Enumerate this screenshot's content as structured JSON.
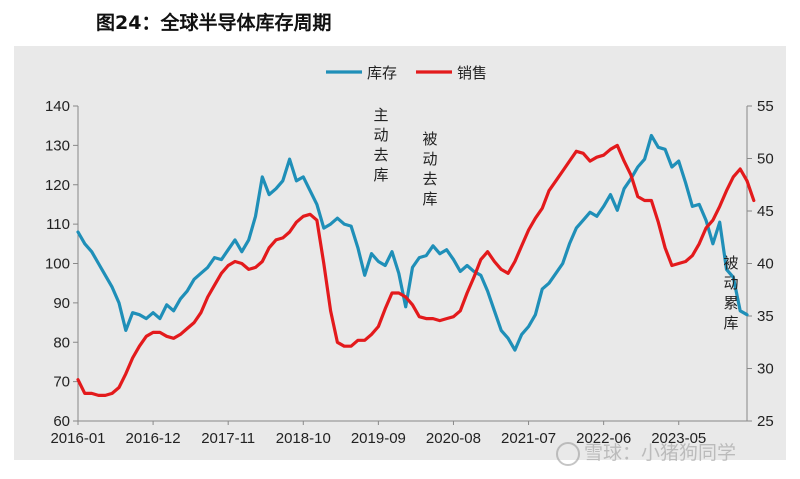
{
  "figure_title": "图24：全球半导体库存周期",
  "watermark": "雪球：小猪狗同学",
  "chart_data": {
    "type": "line",
    "title": "图24：全球半导体库存周期",
    "xlabel": "",
    "ylabel": "",
    "x_tick_labels": [
      "2016-01",
      "2016-12",
      "2017-11",
      "2018-10",
      "2019-09",
      "2020-08",
      "2021-07",
      "2022-06",
      "2023-05"
    ],
    "ylim_left": [
      60,
      140
    ],
    "yticks_left": [
      60,
      70,
      80,
      90,
      100,
      110,
      120,
      130,
      140
    ],
    "ylim_right": [
      25,
      55
    ],
    "yticks_right": [
      25,
      30,
      35,
      40,
      45,
      50,
      55
    ],
    "grid": false,
    "legend_position": "top-center",
    "colors": {
      "库存": "#1f8fb8",
      "销售": "#e31a1c"
    },
    "series": [
      {
        "name": "库存",
        "axis": "left",
        "values": [
          108,
          105,
          103,
          100,
          97,
          94,
          90,
          83,
          87.5,
          87,
          86,
          87.5,
          86,
          89.5,
          88,
          91,
          93,
          96,
          97.5,
          99,
          101.5,
          101,
          103.5,
          106,
          103,
          106,
          112,
          122,
          117.5,
          119,
          121,
          126.5,
          121,
          122,
          118.5,
          115,
          109,
          110,
          111.5,
          110,
          109.5,
          104,
          97,
          102.5,
          100.5,
          99.5,
          103,
          97.5,
          89,
          99,
          101.5,
          102,
          104.5,
          102.5,
          103.5,
          101,
          98,
          99.5,
          98,
          97,
          93,
          88,
          83,
          81,
          78,
          82,
          84,
          87,
          93.5,
          95,
          97.5,
          100,
          105,
          109,
          111,
          113,
          112,
          114.5,
          117.5,
          113.5,
          119,
          121.5,
          124.5,
          126.5,
          132.5,
          129.5,
          129,
          124.5,
          126,
          120.5,
          114.5,
          115,
          111,
          105,
          110.5,
          98.5,
          96.5,
          88,
          87
        ]
      },
      {
        "name": "销售",
        "axis": "left",
        "values": [
          70.5,
          67,
          67,
          66.5,
          66.5,
          67,
          68.5,
          72,
          76,
          79,
          81.5,
          82.5,
          82.5,
          81.5,
          81,
          82,
          83.5,
          85,
          87.5,
          91.5,
          94.5,
          97.5,
          99.5,
          100.5,
          100,
          98.5,
          99,
          100.5,
          104,
          106,
          106.5,
          108,
          110.5,
          112,
          112.5,
          111,
          100,
          88,
          80,
          79,
          79,
          80.5,
          80.5,
          82,
          84,
          88.5,
          92.5,
          92.5,
          91.5,
          89.5,
          86.5,
          86,
          86,
          85.5,
          86,
          86.5,
          88,
          92.5,
          96.5,
          101,
          103,
          100.5,
          98.5,
          97.5,
          100.5,
          104.5,
          108.5,
          111.5,
          114,
          118.5,
          121,
          123.5,
          126,
          128.5,
          128,
          126,
          127,
          127.5,
          129,
          130,
          126,
          122.5,
          117,
          116,
          116,
          110.5,
          104,
          99.5,
          100,
          100.5,
          102,
          105,
          109,
          111,
          114.5,
          118.5,
          122,
          124,
          121,
          116
        ]
      }
    ],
    "annotations": [
      "主动去库",
      "被动去库",
      "被动累库"
    ]
  }
}
